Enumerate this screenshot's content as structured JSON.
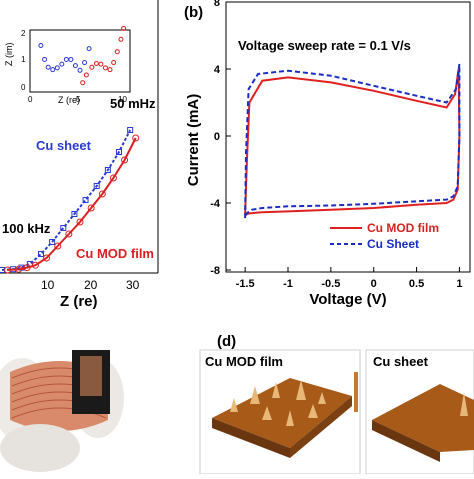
{
  "chart_data": [
    {
      "panel": "a",
      "type": "scatter",
      "xlabel": "Z (re)",
      "x_ticks": [
        "10",
        "20",
        "30"
      ],
      "xlim": [
        5,
        33
      ],
      "ylim": [
        0,
        40
      ],
      "annotations": {
        "high_freq": "100 kHz",
        "low_freq": "50 mHz"
      },
      "legend": [
        "Cu sheet",
        "Cu MOD film"
      ],
      "series": [
        {
          "name": "Cu sheet",
          "color": "#2a3bd1",
          "marker": "square",
          "x": [
            5,
            7,
            8.5,
            10,
            12,
            14,
            16,
            18,
            20,
            22,
            24,
            26,
            28
          ],
          "y": [
            0,
            0.2,
            0.6,
            1.5,
            4,
            7,
            10.5,
            14,
            17.5,
            21,
            25,
            29.5,
            35
          ]
        },
        {
          "name": "Cu MOD film",
          "color": "#d92020",
          "marker": "circle",
          "x": [
            6,
            8,
            9.5,
            11,
            13,
            15,
            17,
            19,
            21,
            23,
            25,
            27,
            29
          ],
          "y": [
            0,
            0.2,
            0.6,
            1.2,
            3,
            6,
            9,
            12,
            15.5,
            19,
            23,
            27.5,
            33
          ]
        }
      ],
      "inset": {
        "xlabel": "Z (re)",
        "ylabel": "Z (im)",
        "x_ticks": [
          "0",
          "5",
          "10"
        ],
        "y_ticks": [
          "0",
          "1",
          "2"
        ],
        "xlim": [
          0,
          11
        ],
        "ylim": [
          0,
          2
        ],
        "series": [
          {
            "name": "Cu sheet",
            "color": "#2a3bd1",
            "x": [
              1.2,
              1.6,
              2.0,
              2.5,
              3.0,
              3.5,
              4.0,
              4.5,
              5.0,
              5.5,
              6.0,
              6.5
            ],
            "y": [
              1.5,
              1.05,
              0.8,
              0.72,
              0.78,
              0.9,
              1.05,
              1.05,
              0.85,
              0.7,
              0.95,
              1.4
            ]
          },
          {
            "name": "Cu MOD film",
            "color": "#d92020",
            "x": [
              5.8,
              6.2,
              6.8,
              7.3,
              7.8,
              8.3,
              8.8,
              9.2,
              9.6,
              10.0,
              10.3
            ],
            "y": [
              0.3,
              0.55,
              0.8,
              0.92,
              0.9,
              0.78,
              0.72,
              0.95,
              1.3,
              1.7,
              2.05
            ]
          }
        ]
      }
    },
    {
      "panel": "b",
      "type": "line",
      "title": "Voltage sweep rate = 0.1 V/s",
      "xlabel": "Voltage (V)",
      "ylabel": "Current (mA)",
      "xlim": [
        -1.7,
        1.1
      ],
      "ylim": [
        -8,
        8
      ],
      "x_ticks": [
        "-1.5",
        "-1",
        "-0.5",
        "0",
        "0.5",
        "1"
      ],
      "y_ticks": [
        "-8",
        "-4",
        "0",
        "4",
        "8"
      ],
      "legend": [
        "Cu MOD film",
        "Cu Sheet"
      ],
      "series": [
        {
          "name": "Cu MOD film",
          "color": "#e02020",
          "x": [
            -1.5,
            -1.48,
            -1.45,
            -1.3,
            -1.0,
            -0.5,
            0.0,
            0.5,
            0.85,
            0.95,
            0.99,
            1.0,
            0.98,
            0.93,
            0.85,
            0.5,
            0.0,
            -0.5,
            -1.0,
            -1.3,
            -1.42,
            -1.48,
            -1.5
          ],
          "y": [
            -4.7,
            -1.5,
            2.0,
            3.3,
            3.5,
            3.2,
            2.7,
            2.1,
            1.7,
            2.5,
            4.0,
            0.0,
            -3.2,
            -3.8,
            -4.0,
            -4.1,
            -4.3,
            -4.4,
            -4.5,
            -4.55,
            -4.6,
            -4.65,
            -4.7
          ]
        },
        {
          "name": "Cu Sheet",
          "color": "#1a2cc4",
          "x": [
            -1.5,
            -1.49,
            -1.46,
            -1.35,
            -1.0,
            -0.5,
            0.0,
            0.5,
            0.85,
            0.96,
            1.0,
            1.0,
            0.98,
            0.93,
            0.85,
            0.5,
            0.0,
            -0.5,
            -1.0,
            -1.3,
            -1.42,
            -1.48,
            -1.5
          ],
          "y": [
            -4.9,
            -1.0,
            2.8,
            3.7,
            3.9,
            3.6,
            3.0,
            2.4,
            2.0,
            2.8,
            4.3,
            0.0,
            -3.0,
            -3.6,
            -3.8,
            -3.9,
            -4.05,
            -4.15,
            -4.2,
            -4.3,
            -4.4,
            -4.6,
            -4.9
          ]
        }
      ]
    }
  ],
  "panels": {
    "b_label": "(b)",
    "d_label": "(d)",
    "d_img1_title": "Cu MOD film",
    "d_img2_title": "Cu sheet"
  },
  "colors": {
    "red": "#d92020",
    "blue": "#2a3bd1",
    "afm": "#b05a10",
    "skin": "#e8c8b0"
  }
}
